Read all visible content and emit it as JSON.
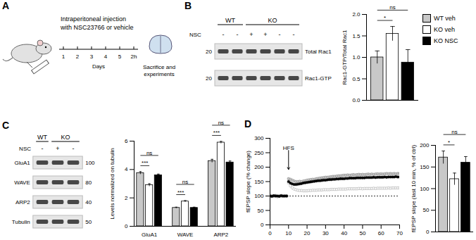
{
  "panels": [
    "A",
    "B",
    "C",
    "D"
  ],
  "schematic": {
    "text_lines": [
      "Intraperitoneal injection",
      "with NSC23766 or vehicle"
    ],
    "days": [
      "1",
      "2",
      "3",
      "4",
      "5",
      "2h"
    ],
    "axis_label": "Days",
    "endpoint_lines": [
      "Sacrifice and",
      "experiments"
    ]
  },
  "blots": [
    {
      "groups": [
        {
          "label": "WT",
          "lanes": 2
        },
        {
          "label": "KO",
          "lanes": 4
        }
      ],
      "treatment": {
        "label": "NSC",
        "lanes": [
          "-",
          "-",
          "+",
          "+",
          "-",
          "-"
        ]
      },
      "rows": [
        {
          "label": "Total Rac1",
          "mw": "20"
        },
        {
          "label": "Rac1-GTP",
          "mw": "20"
        }
      ]
    },
    {
      "groups": [
        {
          "label": "WT",
          "lanes": 1
        },
        {
          "label": "KO",
          "lanes": 2
        }
      ],
      "treatment": {
        "label": "NSC",
        "lanes": [
          "-",
          "+",
          "-"
        ]
      },
      "rows": [
        {
          "label": "GluA1",
          "mw": "100"
        },
        {
          "label": "WAVE",
          "mw": "80"
        },
        {
          "label": "ARP2",
          "mw": "40"
        },
        {
          "label": "Tubulin",
          "mw": "50"
        }
      ]
    }
  ],
  "chart_data": [
    {
      "type": "bar",
      "categories": [
        "WT veh",
        "KO veh",
        "KO NSC"
      ],
      "values": [
        1.0,
        1.55,
        0.88
      ],
      "errors": [
        0.15,
        0.17,
        0.3
      ],
      "colors": [
        "#c8c8c8",
        "#ffffff",
        "#000000"
      ],
      "y_label": "Rac1-GTP/Total Rac1",
      "ylim": [
        0,
        2
      ],
      "yticks": [
        {
          "value": 0,
          "label": "0.0"
        },
        0.5,
        {
          "value": 1,
          "label": "1.0"
        },
        1.5,
        {
          "value": 2,
          "label": "2.0"
        }
      ],
      "annotations": [
        {
          "text": "*",
          "from": "WT veh",
          "to": "KO veh"
        },
        {
          "text": "ns",
          "from": "WT veh",
          "to": "KO NSC"
        }
      ],
      "legend": "right",
      "tick_labels": "y"
    },
    {
      "type": "bar",
      "categories": [
        "GluA1",
        "WAVE",
        "ARP2"
      ],
      "series": [
        {
          "name": "WT veh",
          "color": "#c8c8c8",
          "values": [
            3.75,
            1.3,
            4.6
          ],
          "errors": [
            0.1,
            0.05,
            0.12
          ]
        },
        {
          "name": "KO veh",
          "color": "#ffffff",
          "values": [
            2.9,
            1.75,
            5.9
          ],
          "errors": [
            0.1,
            0.06,
            0.08
          ]
        },
        {
          "name": "KO NSC",
          "color": "#000000",
          "values": [
            3.6,
            1.3,
            4.5
          ],
          "errors": [
            0.08,
            0.05,
            0.1
          ]
        }
      ],
      "y_label": "Levels normalized on tubulin",
      "ylim": [
        0,
        6
      ],
      "yticks": [
        0,
        2,
        4,
        6
      ],
      "annotations": [
        {
          "group": "GluA1",
          "text": "***",
          "from": "WT veh",
          "to": "KO veh"
        },
        {
          "group": "GluA1",
          "text": "ns",
          "from": "WT veh",
          "to": "KO NSC"
        },
        {
          "group": "WAVE",
          "text": "***",
          "from": "WT veh",
          "to": "KO veh"
        },
        {
          "group": "WAVE",
          "text": "ns",
          "from": "WT veh",
          "to": "KO NSC"
        },
        {
          "group": "ARP2",
          "text": "***",
          "from": "WT veh",
          "to": "KO veh"
        },
        {
          "group": "ARP2",
          "text": "ns",
          "from": "WT veh",
          "to": "KO NSC"
        }
      ]
    },
    {
      "type": "scatter",
      "x": [
        0,
        1,
        2,
        3,
        4,
        5,
        6,
        7,
        8,
        9,
        10,
        11,
        12,
        13,
        14,
        15,
        16,
        17,
        18,
        19,
        20,
        21,
        22,
        23,
        24,
        25,
        26,
        27,
        28,
        29,
        30,
        31,
        32,
        33,
        34,
        35,
        36,
        37,
        38,
        39,
        40,
        41,
        42,
        43,
        44,
        45,
        46,
        47,
        48,
        49,
        50,
        51,
        52,
        53,
        54,
        55,
        56,
        57,
        58,
        59,
        60,
        61,
        62,
        63,
        64,
        65,
        66,
        67,
        68,
        69,
        70
      ],
      "series": [
        {
          "name": "WT veh",
          "color": "#c8c8c8",
          "marker": "circle",
          "values": [
            101,
            99,
            100,
            102,
            98,
            100,
            101,
            99,
            100,
            100,
            160,
            158,
            155,
            152,
            150,
            150,
            151,
            150,
            152,
            153,
            155,
            156,
            157,
            158,
            158,
            160,
            161,
            162,
            163,
            164,
            165,
            165,
            166,
            167,
            168,
            168,
            169,
            170,
            170,
            171,
            172,
            172,
            173,
            172,
            173,
            174,
            173,
            174,
            175,
            174,
            175,
            174,
            175,
            176,
            175,
            176,
            175,
            176,
            177,
            176,
            177,
            176,
            177,
            178,
            177,
            178,
            177,
            178,
            177,
            178,
            178
          ]
        },
        {
          "name": "KO veh",
          "color": "#ffffff",
          "marker": "circle",
          "values": [
            100,
            101,
            99,
            100,
            98,
            101,
            100,
            99,
            101,
            100,
            145,
            135,
            128,
            124,
            122,
            120,
            119,
            119,
            118,
            118,
            118,
            119,
            119,
            120,
            120,
            120,
            121,
            121,
            121,
            122,
            122,
            122,
            122,
            123,
            123,
            123,
            123,
            124,
            124,
            124,
            124,
            124,
            125,
            125,
            125,
            125,
            125,
            125,
            126,
            126,
            125,
            126,
            126,
            126,
            126,
            126,
            127,
            126,
            127,
            127,
            127,
            127,
            127,
            127,
            128,
            127,
            128,
            128,
            128,
            128,
            128
          ]
        },
        {
          "name": "KO NSC",
          "color": "#000000",
          "marker": "circle",
          "values": [
            100,
            99,
            101,
            100,
            100,
            99,
            101,
            100,
            100,
            100,
            150,
            145,
            142,
            140,
            140,
            141,
            142,
            143,
            145,
            146,
            147,
            148,
            149,
            150,
            151,
            152,
            153,
            153,
            154,
            155,
            155,
            156,
            157,
            157,
            158,
            158,
            159,
            159,
            160,
            160,
            160,
            161,
            161,
            162,
            162,
            162,
            162,
            163,
            163,
            163,
            163,
            163,
            164,
            164,
            164,
            164,
            165,
            164,
            165,
            165,
            165,
            165,
            166,
            165,
            166,
            166,
            166,
            166,
            167,
            166,
            166
          ]
        }
      ],
      "y_label": "fEPSP slope (% change)",
      "xlim": [
        0,
        70
      ],
      "xticks": [
        0,
        10,
        20,
        30,
        40,
        50,
        60,
        70
      ],
      "ylim": [
        0,
        300
      ],
      "yticks": [
        0,
        50,
        100,
        150,
        200,
        250,
        300
      ],
      "baseline": 100,
      "annotations": [
        {
          "text": "HFS",
          "x": 10
        }
      ]
    },
    {
      "type": "bar",
      "categories": [
        "WT veh",
        "KO veh",
        "KO NSC"
      ],
      "values": [
        172,
        122,
        160
      ],
      "errors": [
        15,
        14,
        14
      ],
      "colors": [
        "#c8c8c8",
        "#ffffff",
        "#000000"
      ],
      "y_label": "fEPSP slope (last 10 min, % of ctrl)",
      "ylim": [
        0,
        200
      ],
      "yticks": [
        0,
        50,
        100,
        150,
        200
      ],
      "annotations": [
        {
          "text": "*",
          "from": "WT veh",
          "to": "KO veh"
        },
        {
          "text": "ns",
          "from": "WT veh",
          "to": "KO NSC"
        }
      ],
      "tick_labels": "y"
    }
  ]
}
